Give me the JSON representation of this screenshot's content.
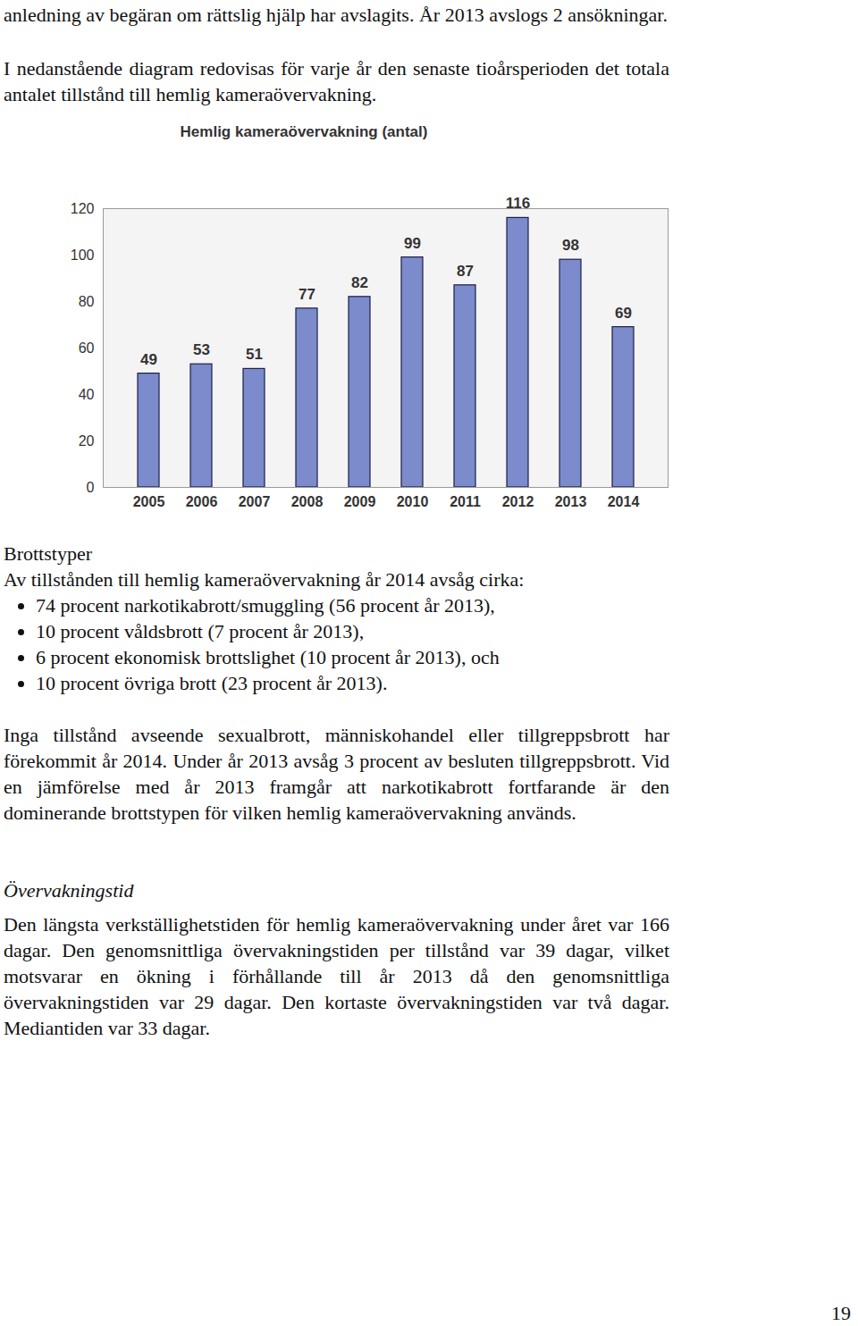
{
  "chart_data": {
    "type": "bar",
    "title": "Hemlig kameraövervakning (antal)",
    "categories": [
      "2005",
      "2006",
      "2007",
      "2008",
      "2009",
      "2010",
      "2011",
      "2012",
      "2013",
      "2014"
    ],
    "values": [
      49,
      53,
      51,
      77,
      82,
      99,
      87,
      116,
      98,
      69
    ],
    "color": "#7b8bcb",
    "ylim": [
      0,
      120
    ],
    "yticks": [
      0,
      20,
      40,
      60,
      80,
      100,
      120
    ],
    "grid": false,
    "data_labels": true
  },
  "document": {
    "intro_paragraphs": [
      "anledning av begäran om rättslig hjälp har avslagits. År 2013 avslogs 2 ansökningar.",
      "I nedanstående diagram redovisas för varje år den senaste tioårsperioden det totala antalet tillstånd till hemlig kameraövervakning."
    ],
    "section1": {
      "heading": "Brottstyper",
      "intro": "Av tillstånden till hemlig kameraövervakning år 2014 avsåg cirka:",
      "bullets": [
        "74 procent narkotikabrott/smuggling (56 procent år 2013),",
        "10 procent våldsbrott (7 procent år 2013),",
        "6 procent ekonomisk brottslighet (10 procent år 2013), och",
        "10 procent övriga brott (23 procent år 2013)."
      ],
      "paragraph": "Inga tillstånd avseende sexualbrott, människohandel eller tillgreppsbrott har förekommit år 2014. Under år 2013 avsåg 3 procent av besluten tillgreppsbrott. Vid en jämförelse med år 2013 framgår att narkotikabrott fortfarande är den dominerande brottstypen för vilken hemlig kameraövervakning används."
    },
    "section2": {
      "heading": "Övervakningstid",
      "paragraph": "Den längsta verkställighetstiden för hemlig kameraövervakning under året var 166 dagar. Den genomsnittliga övervakningstiden per tillstånd var 39 dagar, vilket motsvarar en ökning i förhållande till år 2013 då den genomsnittliga övervakningstiden var 29 dagar. Den kortaste övervakningstiden var två dagar. Mediantiden var 33 dagar."
    },
    "page_number": "19"
  }
}
